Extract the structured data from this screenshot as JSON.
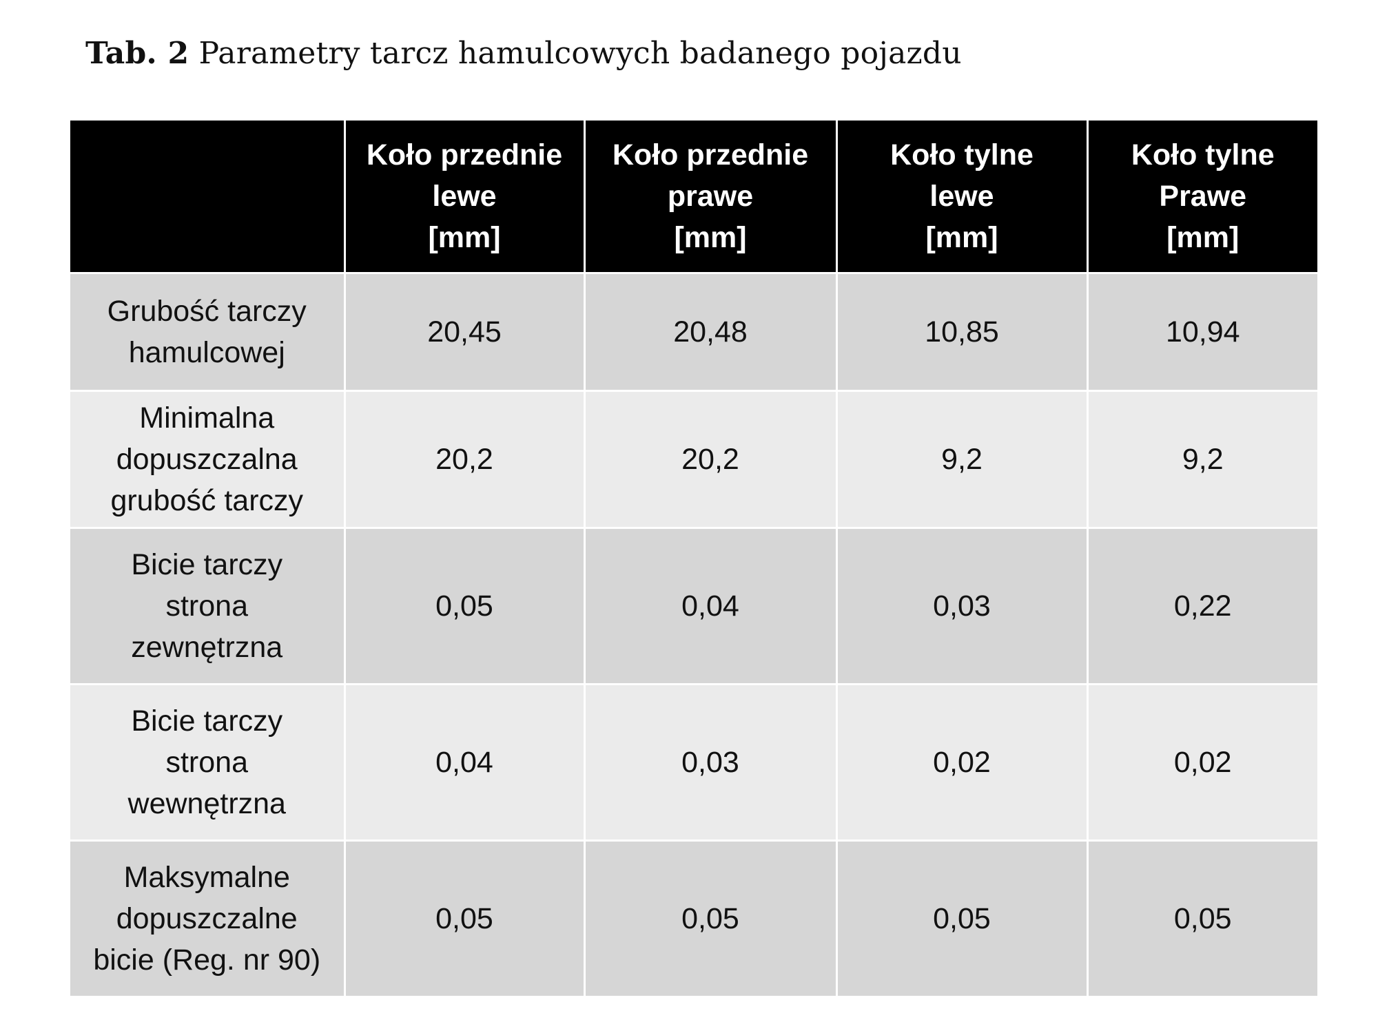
{
  "caption": {
    "label": "Tab. 2",
    "text": "Parametry tarcz hamulcowych badanego pojazdu"
  },
  "table": {
    "header": [
      [],
      [
        "Koło przednie",
        "lewe",
        "[mm]"
      ],
      [
        "Koło przednie",
        "prawe",
        "[mm]"
      ],
      [
        "Koło tylne",
        "lewe",
        "[mm]"
      ],
      [
        "Koło tylne",
        "Prawe",
        "[mm]"
      ]
    ],
    "rows": [
      {
        "label": [
          "Grubość tarczy",
          "hamulcowej"
        ],
        "values": [
          "20,45",
          "20,48",
          "10,85",
          "10,94"
        ]
      },
      {
        "label": [
          "Minimalna",
          "dopuszczalna",
          "grubość tarczy"
        ],
        "values": [
          "20,2",
          "20,2",
          "9,2",
          "9,2"
        ]
      },
      {
        "label": [
          "Bicie tarczy",
          "strona",
          "zewnętrzna"
        ],
        "values": [
          "0,05",
          "0,04",
          "0,03",
          "0,22"
        ]
      },
      {
        "label": [
          "Bicie tarczy",
          "strona",
          "wewnętrzna"
        ],
        "values": [
          "0,04",
          "0,03",
          "0,02",
          "0,02"
        ]
      },
      {
        "label": [
          "Maksymalne",
          "dopuszczalne",
          "bicie (Reg. nr 90)"
        ],
        "values": [
          "0,05",
          "0,05",
          "0,05",
          "0,05"
        ]
      }
    ]
  },
  "colors": {
    "header_bg": "#000000",
    "header_text": "#ffffff",
    "row_dark": "#d6d6d6",
    "row_light": "#ebebeb",
    "grid": "#ffffff"
  }
}
